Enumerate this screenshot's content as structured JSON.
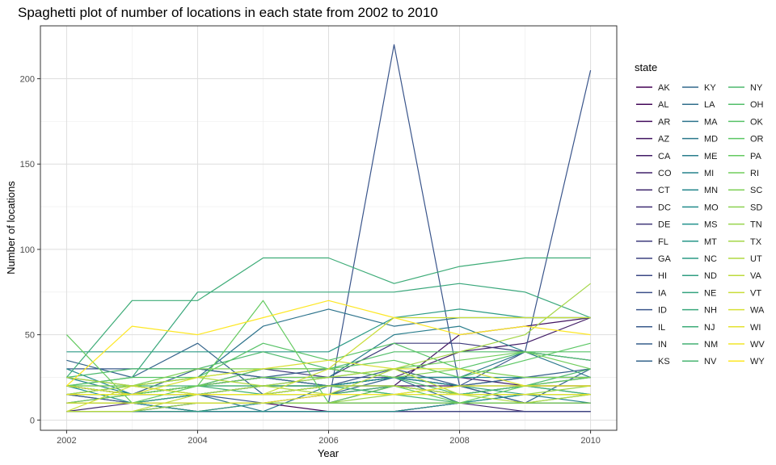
{
  "chart_data": {
    "type": "line",
    "title": "Spaghetti plot of number of locations in each state from 2002 to 2010",
    "xlabel": "Year",
    "ylabel": "Number of locations",
    "xlim": [
      2001.6,
      2010.4
    ],
    "ylim": [
      -6,
      231
    ],
    "x_ticks": [
      2002,
      2004,
      2006,
      2008,
      2010
    ],
    "x_tick_labels": [
      "2002",
      "2004",
      "2006",
      "2008",
      "2010"
    ],
    "y_ticks": [
      0,
      50,
      100,
      150,
      200
    ],
    "y_tick_labels": [
      "0",
      "50",
      "100",
      "150",
      "200"
    ],
    "grid": true,
    "legend_title": "state",
    "legend_position": "right",
    "palette": "viridis",
    "x": [
      2002,
      2003,
      2004,
      2005,
      2006,
      2007,
      2008,
      2009,
      2010
    ],
    "series": [
      {
        "name": "AK",
        "values": [
          5,
          5,
          5,
          5,
          5,
          5,
          5,
          5,
          5
        ]
      },
      {
        "name": "AL",
        "values": [
          5,
          5,
          10,
          10,
          5,
          5,
          10,
          10,
          10
        ]
      },
      {
        "name": "AR",
        "values": [
          10,
          10,
          10,
          10,
          10,
          20,
          20,
          10,
          10
        ]
      },
      {
        "name": "AZ",
        "values": [
          10,
          10,
          5,
          10,
          15,
          20,
          50,
          55,
          60
        ]
      },
      {
        "name": "CA",
        "values": [
          20,
          15,
          15,
          20,
          20,
          25,
          40,
          45,
          60
        ]
      },
      {
        "name": "CO",
        "values": [
          15,
          15,
          20,
          25,
          20,
          25,
          25,
          20,
          20
        ]
      },
      {
        "name": "CT",
        "values": [
          5,
          10,
          5,
          5,
          5,
          5,
          10,
          5,
          5
        ]
      },
      {
        "name": "DC",
        "values": [
          5,
          5,
          5,
          5,
          5,
          5,
          5,
          5,
          5
        ]
      },
      {
        "name": "DE",
        "values": [
          10,
          10,
          10,
          10,
          10,
          10,
          10,
          10,
          10
        ]
      },
      {
        "name": "FL",
        "values": [
          10,
          15,
          20,
          30,
          25,
          45,
          45,
          40,
          35
        ]
      },
      {
        "name": "GA",
        "values": [
          15,
          10,
          15,
          15,
          20,
          20,
          15,
          20,
          20
        ]
      },
      {
        "name": "HI",
        "values": [
          5,
          5,
          5,
          5,
          5,
          5,
          5,
          5,
          5
        ]
      },
      {
        "name": "IA",
        "values": [
          20,
          15,
          20,
          25,
          25,
          25,
          20,
          25,
          25
        ]
      },
      {
        "name": "ID",
        "values": [
          15,
          10,
          15,
          10,
          10,
          220,
          20,
          40,
          205
        ]
      },
      {
        "name": "IL",
        "values": [
          30,
          30,
          30,
          25,
          20,
          30,
          20,
          20,
          25
        ]
      },
      {
        "name": "IN",
        "values": [
          20,
          15,
          30,
          25,
          30,
          25,
          20,
          25,
          30
        ]
      },
      {
        "name": "KS",
        "values": [
          35,
          25,
          45,
          15,
          15,
          25,
          20,
          10,
          30
        ]
      },
      {
        "name": "KY",
        "values": [
          20,
          15,
          20,
          25,
          20,
          20,
          15,
          20,
          20
        ]
      },
      {
        "name": "LA",
        "values": [
          10,
          10,
          15,
          20,
          20,
          25,
          10,
          15,
          15
        ]
      },
      {
        "name": "MA",
        "values": [
          15,
          20,
          25,
          55,
          65,
          55,
          60,
          60,
          60
        ]
      },
      {
        "name": "MD",
        "values": [
          25,
          20,
          15,
          5,
          20,
          25,
          25,
          40,
          25
        ]
      },
      {
        "name": "ME",
        "values": [
          20,
          15,
          20,
          20,
          25,
          50,
          55,
          40,
          35
        ]
      },
      {
        "name": "MI",
        "values": [
          25,
          15,
          15,
          15,
          20,
          20,
          15,
          15,
          10
        ]
      },
      {
        "name": "MN",
        "values": [
          15,
          15,
          15,
          15,
          20,
          25,
          20,
          20,
          15
        ]
      },
      {
        "name": "MO",
        "values": [
          30,
          15,
          15,
          20,
          20,
          25,
          25,
          25,
          25
        ]
      },
      {
        "name": "MS",
        "values": [
          20,
          10,
          10,
          10,
          10,
          10,
          10,
          15,
          15
        ]
      },
      {
        "name": "MT",
        "values": [
          10,
          10,
          5,
          5,
          5,
          5,
          10,
          10,
          10
        ]
      },
      {
        "name": "NC",
        "values": [
          40,
          40,
          40,
          40,
          40,
          60,
          65,
          60,
          60
        ]
      },
      {
        "name": "ND",
        "values": [
          5,
          5,
          5,
          10,
          10,
          10,
          10,
          10,
          10
        ]
      },
      {
        "name": "NE",
        "values": [
          10,
          10,
          15,
          15,
          20,
          15,
          20,
          15,
          15
        ]
      },
      {
        "name": "NH",
        "values": [
          20,
          25,
          75,
          75,
          75,
          75,
          80,
          75,
          60
        ]
      },
      {
        "name": "NJ",
        "values": [
          25,
          70,
          70,
          95,
          95,
          80,
          90,
          95,
          95
        ]
      },
      {
        "name": "NM",
        "values": [
          15,
          15,
          20,
          15,
          15,
          20,
          15,
          20,
          15
        ]
      },
      {
        "name": "NV",
        "values": [
          20,
          20,
          20,
          20,
          20,
          15,
          10,
          10,
          15
        ]
      },
      {
        "name": "NY",
        "values": [
          25,
          30,
          30,
          40,
          30,
          25,
          15,
          20,
          30
        ]
      },
      {
        "name": "OH",
        "values": [
          15,
          20,
          25,
          30,
          30,
          40,
          40,
          40,
          35
        ]
      },
      {
        "name": "OK",
        "values": [
          20,
          25,
          25,
          45,
          35,
          45,
          30,
          40,
          40
        ]
      },
      {
        "name": "OR",
        "values": [
          15,
          15,
          20,
          30,
          30,
          35,
          25,
          35,
          45
        ]
      },
      {
        "name": "PA",
        "values": [
          50,
          10,
          20,
          70,
          10,
          20,
          10,
          20,
          25
        ]
      },
      {
        "name": "RI",
        "values": [
          10,
          15,
          20,
          25,
          25,
          30,
          35,
          40,
          30
        ]
      },
      {
        "name": "SC",
        "values": [
          20,
          20,
          30,
          30,
          30,
          25,
          30,
          25,
          25
        ]
      },
      {
        "name": "SD",
        "values": [
          5,
          5,
          10,
          10,
          10,
          10,
          10,
          10,
          10
        ]
      },
      {
        "name": "TN",
        "values": [
          10,
          10,
          10,
          10,
          10,
          15,
          15,
          15,
          20
        ]
      },
      {
        "name": "TX",
        "values": [
          15,
          20,
          15,
          20,
          25,
          30,
          40,
          50,
          80
        ]
      },
      {
        "name": "UT",
        "values": [
          25,
          20,
          25,
          20,
          15,
          30,
          15,
          10,
          15
        ]
      },
      {
        "name": "VA",
        "values": [
          5,
          5,
          15,
          15,
          20,
          20,
          15,
          15,
          15
        ]
      },
      {
        "name": "VT",
        "values": [
          5,
          20,
          15,
          15,
          30,
          60,
          60,
          60,
          60
        ]
      },
      {
        "name": "WA",
        "values": [
          20,
          15,
          25,
          30,
          35,
          30,
          30,
          20,
          20
        ]
      },
      {
        "name": "WI",
        "values": [
          10,
          10,
          10,
          10,
          15,
          15,
          15,
          15,
          15
        ]
      },
      {
        "name": "WV",
        "values": [
          15,
          15,
          15,
          15,
          15,
          15,
          20,
          20,
          20
        ]
      },
      {
        "name": "WY",
        "values": [
          20,
          55,
          50,
          60,
          70,
          60,
          50,
          55,
          50
        ]
      }
    ]
  }
}
